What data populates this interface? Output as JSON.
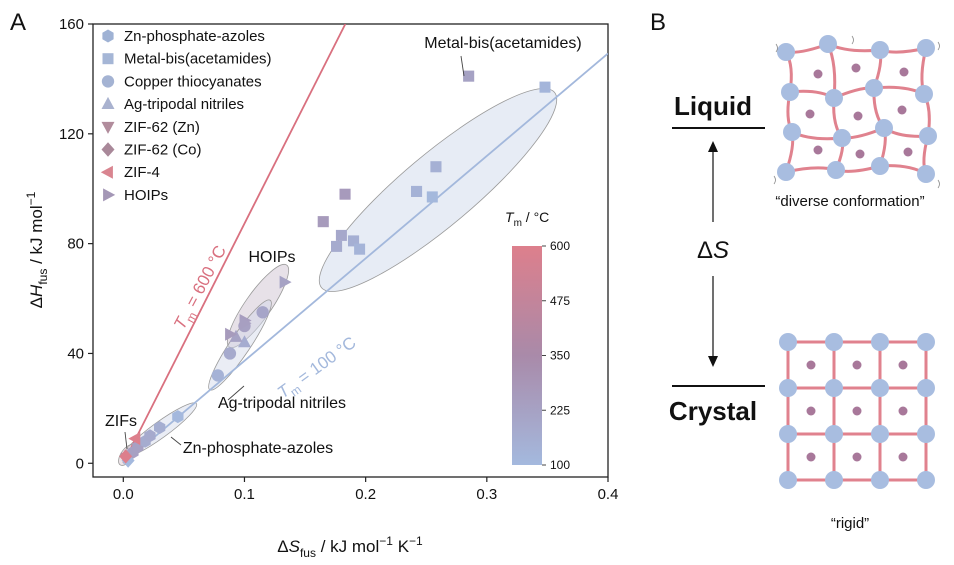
{
  "chart_data": {
    "type": "scatter",
    "panel_label": "A",
    "xlabel": [
      "Δ",
      "S",
      "fus",
      " / kJ mol",
      "−1",
      " K",
      "−1"
    ],
    "ylabel": [
      "Δ",
      "H",
      "fus",
      " / kJ mol",
      "−1"
    ],
    "xlim": [
      -0.025,
      0.4
    ],
    "ylim": [
      -5,
      160
    ],
    "xticks": [
      {
        "value": 0,
        "label": "0.0"
      },
      0.1,
      0.2,
      0.3,
      0.4
    ],
    "yticks": [
      0,
      40,
      80,
      120,
      160
    ],
    "grid": false,
    "legend": "top-left",
    "series": [
      {
        "name": "Zn-phosphate-azoles",
        "marker": "hexagon",
        "color": "#9fb2d4",
        "x": [
          0.008,
          0.012,
          0.018,
          0.022,
          0.03,
          0.045
        ],
        "values": [
          4,
          6,
          8,
          10,
          13,
          17
        ]
      },
      {
        "name": "Metal-bis(acetamides)",
        "marker": "square",
        "color": "#a5b6d6",
        "x": [
          0.285,
          0.348,
          0.258,
          0.242,
          0.255,
          0.183,
          0.165,
          0.18,
          0.19,
          0.176,
          0.195
        ],
        "values": [
          141,
          137,
          108,
          99,
          97,
          98,
          88,
          83,
          81,
          79,
          78
        ]
      },
      {
        "name": "Copper thiocyanates",
        "marker": "circle",
        "color": "#a4b3d3",
        "x": [
          0.078,
          0.088,
          0.1,
          0.115
        ],
        "values": [
          32,
          40,
          50,
          55
        ]
      },
      {
        "name": "Ag-tripodal nitriles",
        "marker": "triangle-up",
        "color": "#a9b2cf",
        "x": [
          0.1,
          0.093
        ],
        "values": [
          44,
          46
        ]
      },
      {
        "name": "ZIF-62 (Zn)",
        "marker": "triangle-down",
        "color": "#b18c9c",
        "x": [
          0.003,
          0.006
        ],
        "values": [
          2,
          3
        ]
      },
      {
        "name": "ZIF-62 (Co)",
        "marker": "diamond",
        "color": "#a98899",
        "x": [
          0.004,
          0.002
        ],
        "values": [
          1,
          2.5
        ]
      },
      {
        "name": "ZIF-4",
        "marker": "triangle-left",
        "color": "#d98590",
        "x": [
          0.01
        ],
        "values": [
          9
        ]
      },
      {
        "name": "HOIPs",
        "marker": "triangle-right",
        "color": "#a497b6",
        "x": [
          0.088,
          0.1,
          0.133,
          0.1
        ],
        "values": [
          47,
          52,
          66,
          51
        ]
      }
    ],
    "reference_lines": [
      {
        "tm": 600,
        "label": [
          "T",
          "m",
          " = 600 °C"
        ],
        "color": "#d9707f"
      },
      {
        "tm": 100,
        "label": [
          "T",
          "m",
          " = 100 °C"
        ],
        "color": "#a3b8dc"
      }
    ],
    "annotations": [
      "Metal-bis(acetamides)",
      "HOIPs",
      "Ag-tripodal nitriles",
      "ZIFs",
      "Zn-phosphate-azoles"
    ],
    "colorbar": {
      "title": [
        "T",
        "m",
        " / °C"
      ],
      "lim": [
        100,
        600
      ],
      "ticks": [
        100,
        225,
        350,
        475,
        600
      ],
      "colors": [
        "#a4b9de",
        "#a98aa9",
        "#dd7f8c"
      ]
    }
  },
  "diagram": {
    "panel_label": "B",
    "liquid": "Liquid",
    "crystal": "Crystal",
    "entropy": [
      "Δ",
      "S"
    ],
    "liquid_caption": "“diverse conformation”",
    "crystal_caption": "“rigid”"
  }
}
